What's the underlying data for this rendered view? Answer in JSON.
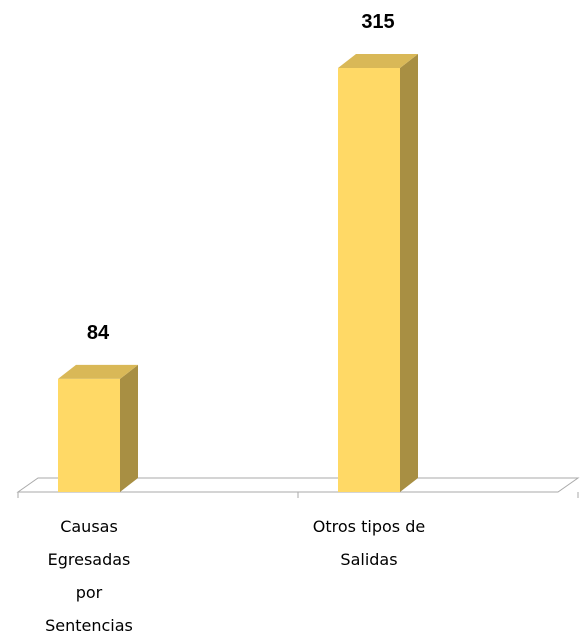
{
  "chart_data": {
    "type": "bar3d",
    "categories": [
      "Causas Egresadas por Sentencias",
      "Otros tipos de Salidas"
    ],
    "values": [
      84,
      315
    ],
    "color": "#ffd966",
    "ylim": [
      0,
      350
    ]
  }
}
